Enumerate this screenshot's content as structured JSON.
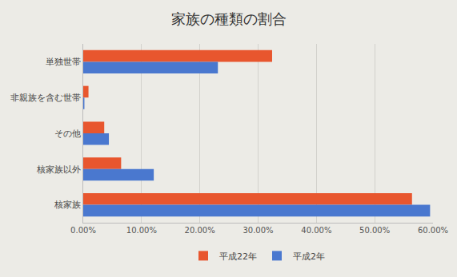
{
  "chart_data": {
    "type": "bar",
    "orientation": "horizontal",
    "title": "家族の種類の割合",
    "categories": [
      "単独世帯",
      "非親族を含む世帯",
      "その他",
      "核家族以外",
      "核家族"
    ],
    "series": [
      {
        "name": "平成22年",
        "color": "#e8562e",
        "values": [
          32.4,
          0.9,
          3.6,
          6.5,
          56.4
        ]
      },
      {
        "name": "平成2年",
        "color": "#4a78cf",
        "values": [
          23.1,
          0.2,
          4.4,
          12.1,
          59.5
        ]
      }
    ],
    "xlim": [
      0,
      60
    ],
    "xticks": [
      {
        "value": 0,
        "label": "0.00%"
      },
      {
        "value": 10,
        "label": "10.00%"
      },
      {
        "value": 20,
        "label": "20.00%"
      },
      {
        "value": 30,
        "label": "30.00%"
      },
      {
        "value": 40,
        "label": "40.00%"
      },
      {
        "value": 50,
        "label": "50.00%"
      },
      {
        "value": 60,
        "label": "60.00%"
      }
    ],
    "grid": true,
    "legend": "bottom"
  }
}
